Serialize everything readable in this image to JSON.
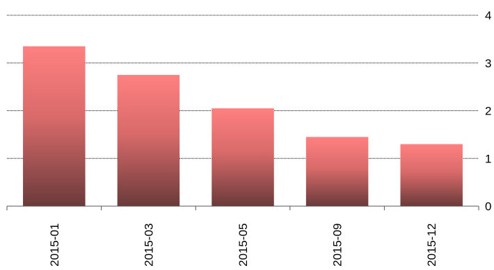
{
  "chart_data": {
    "type": "bar",
    "categories": [
      "2015-01",
      "2015-03",
      "2015-05",
      "2015-09",
      "2015-12"
    ],
    "values": [
      3.35,
      2.75,
      2.05,
      1.45,
      1.3
    ],
    "ylim": [
      0,
      4
    ],
    "yticks": [
      "0",
      "1",
      "2",
      "3",
      "4"
    ],
    "y_axis_side": "right",
    "grid": true,
    "legend": false,
    "colors": {
      "bar_top": "#ff8080",
      "bar_bottom": "#6b3a3a",
      "grid": "#000000",
      "axis": "#555555"
    }
  }
}
